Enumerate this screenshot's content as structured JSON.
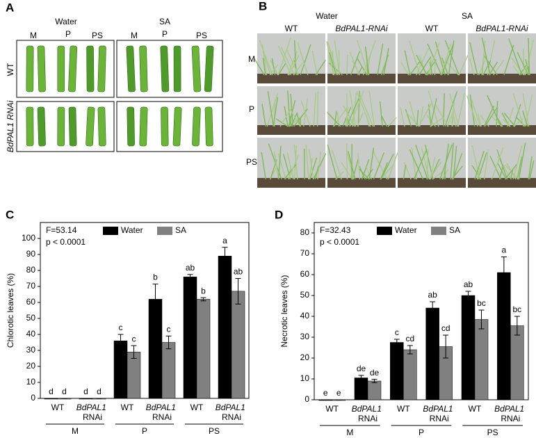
{
  "panel_a": {
    "label": "A",
    "conditions": [
      "Water",
      "SA"
    ],
    "columns": [
      "M",
      "P",
      "PS",
      "M",
      "P",
      "PS"
    ],
    "rows": [
      "WT",
      "BdPAL1 RNAi"
    ]
  },
  "panel_b": {
    "label": "B",
    "conditions": [
      "Water",
      "SA"
    ],
    "columns": [
      "WT",
      "BdPAL1-RNAi",
      "WT",
      "BdPAL1-RNAi"
    ],
    "rows": [
      "M",
      "P",
      "PS"
    ]
  },
  "chart_data": [
    {
      "type": "bar",
      "panel_label": "C",
      "ylabel": "Chlorotic leaves (%)",
      "annotations": [
        "F=53.14",
        "p < 0.0001"
      ],
      "categories": [
        "WT",
        "BdPAL1 RNAi",
        "WT",
        "BdPAL1 RNAi",
        "WT",
        "BdPAL1 RNAi"
      ],
      "groups": [
        "M",
        "P",
        "PS"
      ],
      "series": [
        {
          "name": "Water",
          "color": "#000000",
          "values": [
            0,
            0,
            36,
            62,
            76,
            89
          ],
          "errors": [
            0,
            0,
            4,
            9.5,
            1.5,
            5.5
          ],
          "letters": [
            "d",
            "d",
            "c",
            "b",
            "ab",
            "a"
          ]
        },
        {
          "name": "SA",
          "color": "#808080",
          "values": [
            0,
            0,
            29,
            35,
            62,
            67
          ],
          "errors": [
            0,
            0,
            4,
            4,
            1,
            8
          ],
          "letters": [
            "d",
            "d",
            "c",
            "c",
            "b",
            "ab"
          ]
        }
      ],
      "ylim": [
        0,
        110
      ],
      "yticks": [
        0,
        10,
        20,
        30,
        40,
        50,
        60,
        70,
        80,
        90,
        100
      ],
      "legend": "top"
    },
    {
      "type": "bar",
      "panel_label": "D",
      "ylabel": "Necrotic leaves (%)",
      "annotations": [
        "F=32.43",
        "p < 0.0001"
      ],
      "categories": [
        "WT",
        "BdPAL1 RNAi",
        "WT",
        "BdPAL1 RNAi",
        "WT",
        "BdPAL1 RNAi"
      ],
      "groups": [
        "M",
        "P",
        "PS"
      ],
      "series": [
        {
          "name": "Water",
          "color": "#000000",
          "values": [
            0,
            10.5,
            27.5,
            44,
            50,
            61
          ],
          "errors": [
            0,
            1.2,
            1.5,
            3,
            2,
            7.5
          ],
          "letters": [
            "e",
            "de",
            "c",
            "ab",
            "ab",
            "a"
          ]
        },
        {
          "name": "SA",
          "color": "#808080",
          "values": [
            0,
            9,
            24,
            25.5,
            38.5,
            35.5
          ],
          "errors": [
            0,
            0.8,
            2,
            5.5,
            4.5,
            4.5
          ],
          "letters": [
            "e",
            "de",
            "cd",
            "cd",
            "bc",
            "bc"
          ]
        }
      ],
      "ylim": [
        0,
        85
      ],
      "yticks": [
        0,
        10,
        20,
        30,
        40,
        50,
        60,
        70,
        80
      ],
      "legend": "top"
    }
  ]
}
